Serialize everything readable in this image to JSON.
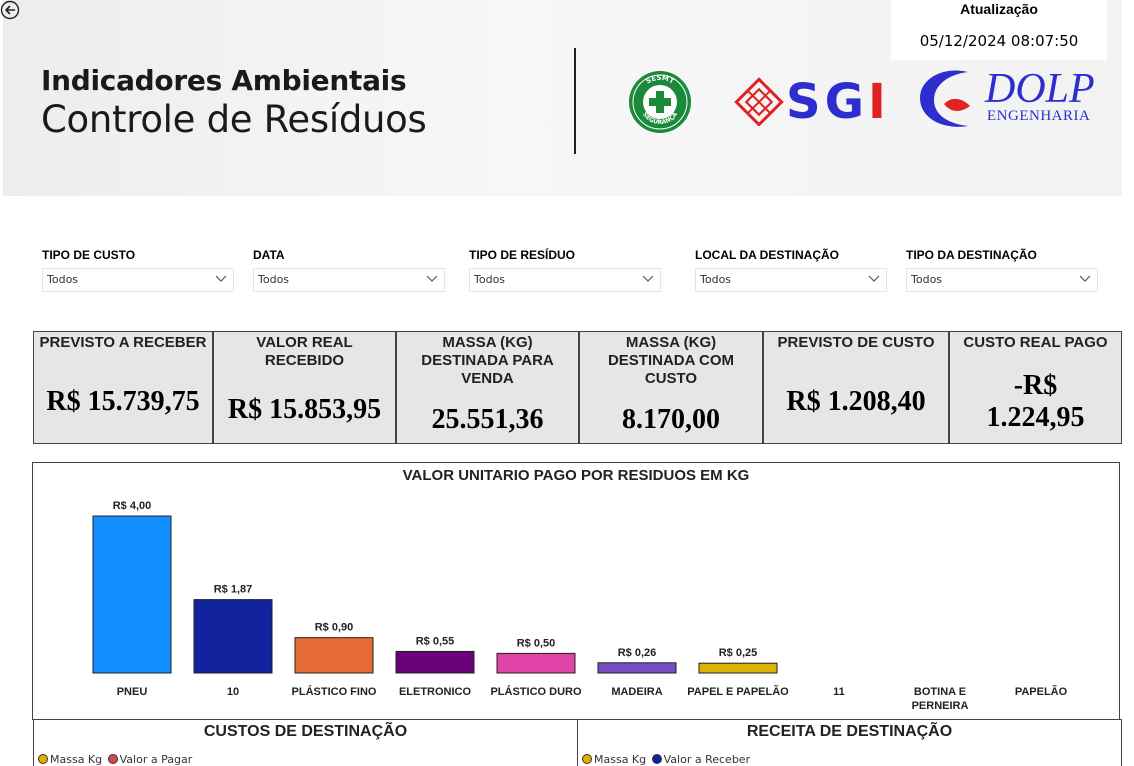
{
  "header": {
    "title_line1": "Indicadores Ambientais",
    "title_line2": "Controle de Resíduos",
    "sesmt_logo_text": "SESMT SEGURANÇA",
    "sgi_logo_text": "SGI",
    "dolp_name": "DOLP",
    "dolp_sub": "ENGENHARIA",
    "update_label": "Atualização",
    "update_value": "05/12/2024 08:07:50",
    "back_icon": "back-arrow-icon"
  },
  "filters": [
    {
      "label": "TIPO DE CUSTO",
      "value": "Todos"
    },
    {
      "label": "DATA",
      "value": "Todos"
    },
    {
      "label": "TIPO DE RESÍDUO",
      "value": "Todos"
    },
    {
      "label": "LOCAL DA DESTINAÇÃO",
      "value": "Todos"
    },
    {
      "label": "TIPO DA DESTINAÇÃO",
      "value": "Todos"
    }
  ],
  "kpis": [
    {
      "title": "PREVISTO A RECEBER",
      "value": "R$ 15.739,75"
    },
    {
      "title": "VALOR REAL RECEBIDO",
      "value": "R$ 15.853,95"
    },
    {
      "title": "MASSA (KG) DESTINADA PARA VENDA",
      "value": "25.551,36"
    },
    {
      "title": "MASSA (KG) DESTINADA COM CUSTO",
      "value": "8.170,00"
    },
    {
      "title": "PREVISTO DE CUSTO",
      "value": "R$ 1.208,40"
    },
    {
      "title": "CUSTO REAL PAGO",
      "value": "-R$ 1.224,95"
    }
  ],
  "chart_data": {
    "type": "bar",
    "title": "VALOR UNITARIO PAGO POR RESIDUOS EM KG",
    "categories": [
      "PNEU",
      "10",
      "PLÁSTICO FINO",
      "ELETRONICO",
      "PLÁSTICO DURO",
      "MADEIRA",
      "PAPEL E PAPELÃO",
      "11",
      "BOTINA E PERNEIRA",
      "PAPELÃO"
    ],
    "values": [
      4.0,
      1.87,
      0.9,
      0.55,
      0.5,
      0.26,
      0.25,
      0,
      0,
      0
    ],
    "data_labels": [
      "R$ 4,00",
      "R$ 1,87",
      "R$ 0,90",
      "R$ 0,55",
      "R$ 0,50",
      "R$ 0,26",
      "R$ 0,25",
      "",
      "",
      ""
    ],
    "colors": [
      "#118dff",
      "#12239e",
      "#e66c37",
      "#6b007b",
      "#e044a7",
      "#744ec2",
      "#d9b300",
      "#d64550",
      "#197278",
      "#1aab40"
    ],
    "xlabel": "",
    "ylabel": "",
    "ylim": [
      0,
      4
    ],
    "grid": false
  },
  "panels": {
    "costs": {
      "title": "CUSTOS DE DESTINAÇÃO",
      "legend": [
        {
          "label": "Massa Kg",
          "color": "#d9b300"
        },
        {
          "label": "Valor a Pagar",
          "color": "#d64550"
        }
      ]
    },
    "revenue": {
      "title": "RECEITA DE DESTINAÇÃO",
      "legend": [
        {
          "label": "Massa Kg",
          "color": "#d9b300"
        },
        {
          "label": "Valor a Receber",
          "color": "#12239e"
        }
      ]
    }
  }
}
